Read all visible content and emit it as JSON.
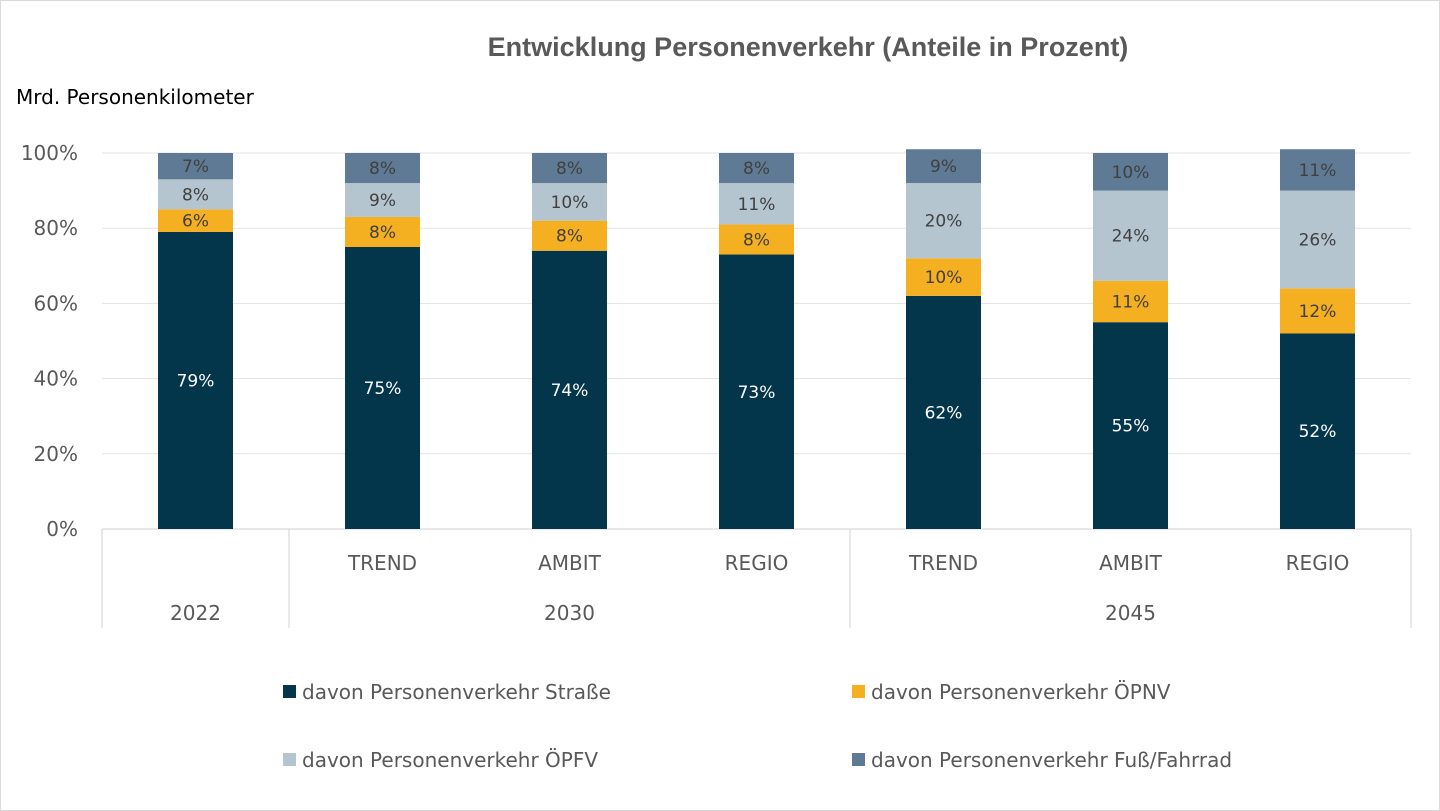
{
  "chart_data": {
    "type": "bar",
    "stacked": true,
    "title": "Entwicklung Personenverkehr (Anteile in Prozent)",
    "unit_label": "Mrd. Personenkilometer",
    "y_ticks": [
      "0%",
      "20%",
      "40%",
      "60%",
      "80%",
      "100%"
    ],
    "ylim": [
      0,
      100
    ],
    "grid": true,
    "legend_position": "bottom",
    "categories": [
      "",
      "TREND",
      "AMBIT",
      "REGIO",
      "TREND",
      "AMBIT",
      "REGIO"
    ],
    "groups": [
      {
        "label": "2022",
        "span": 1
      },
      {
        "label": "2030",
        "span": 3
      },
      {
        "label": "2045",
        "span": 3
      }
    ],
    "series": [
      {
        "name": "davon Personenverkehr Straße",
        "color": "#03364a",
        "label_color": "#ffffff",
        "values": [
          79,
          75,
          74,
          73,
          62,
          55,
          52
        ],
        "labels": [
          "79%",
          "75%",
          "74%",
          "73%",
          "62%",
          "55%",
          "52%"
        ]
      },
      {
        "name": "davon Personenverkehr ÖPNV",
        "color": "#f5b021",
        "label_color": "#404040",
        "values": [
          6,
          8,
          8,
          8,
          10,
          11,
          12
        ],
        "labels": [
          "6%",
          "8%",
          "8%",
          "8%",
          "10%",
          "11%",
          "12%"
        ]
      },
      {
        "name": "davon Personenverkehr ÖPFV",
        "color": "#b4c5d0",
        "label_color": "#404040",
        "values": [
          8,
          9,
          10,
          11,
          20,
          24,
          26
        ],
        "labels": [
          "8%",
          "9%",
          "10%",
          "11%",
          "20%",
          "24%",
          "26%"
        ]
      },
      {
        "name": "davon Personenverkehr Fuß/Fahrrad",
        "color": "#5e7a95",
        "label_color": "#404040",
        "values": [
          7,
          8,
          8,
          8,
          9,
          10,
          11
        ],
        "labels": [
          "7%",
          "8%",
          "8%",
          "8%",
          "9%",
          "10%",
          "11%"
        ]
      }
    ]
  }
}
